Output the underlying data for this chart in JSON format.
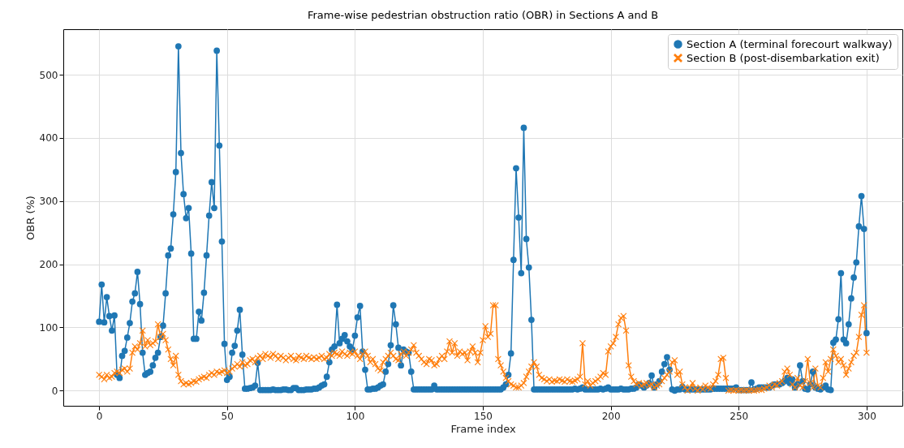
{
  "chart_data": {
    "type": "line",
    "title": "Frame-wise pedestrian obstruction ratio (OBR) in Sections A and B",
    "xlabel": "Frame index",
    "ylabel": "OBR (%)",
    "xlim": [
      -14,
      314
    ],
    "ylim": [
      -24,
      572
    ],
    "xticks": [
      0,
      50,
      100,
      150,
      200,
      250,
      300
    ],
    "yticks": [
      0,
      100,
      200,
      300,
      400,
      500
    ],
    "grid": true,
    "legend": "top right",
    "line_style": "solid",
    "x": [
      0,
      1,
      2,
      3,
      4,
      5,
      6,
      7,
      8,
      9,
      10,
      11,
      12,
      13,
      14,
      15,
      16,
      17,
      18,
      19,
      20,
      21,
      22,
      23,
      24,
      25,
      26,
      27,
      28,
      29,
      30,
      31,
      32,
      33,
      34,
      35,
      36,
      37,
      38,
      39,
      40,
      41,
      42,
      43,
      44,
      45,
      46,
      47,
      48,
      49,
      50,
      51,
      52,
      53,
      54,
      55,
      56,
      57,
      58,
      59,
      60,
      61,
      62,
      63,
      64,
      65,
      66,
      67,
      68,
      69,
      70,
      71,
      72,
      73,
      74,
      75,
      76,
      77,
      78,
      79,
      80,
      81,
      82,
      83,
      84,
      85,
      86,
      87,
      88,
      89,
      90,
      91,
      92,
      93,
      94,
      95,
      96,
      97,
      98,
      99,
      100,
      101,
      102,
      103,
      104,
      105,
      106,
      107,
      108,
      109,
      110,
      111,
      112,
      113,
      114,
      115,
      116,
      117,
      118,
      119,
      120,
      121,
      122,
      123,
      124,
      125,
      126,
      127,
      128,
      129,
      130,
      131,
      132,
      133,
      134,
      135,
      136,
      137,
      138,
      139,
      140,
      141,
      142,
      143,
      144,
      145,
      146,
      147,
      148,
      149,
      150,
      151,
      152,
      153,
      154,
      155,
      156,
      157,
      158,
      159,
      160,
      161,
      162,
      163,
      164,
      165,
      166,
      167,
      168,
      169,
      170,
      171,
      172,
      173,
      174,
      175,
      176,
      177,
      178,
      179,
      180,
      181,
      182,
      183,
      184,
      185,
      186,
      187,
      188,
      189,
      190,
      191,
      192,
      193,
      194,
      195,
      196,
      197,
      198,
      199,
      200,
      201,
      202,
      203,
      204,
      205,
      206,
      207,
      208,
      209,
      210,
      211,
      212,
      213,
      214,
      215,
      216,
      217,
      218,
      219,
      220,
      221,
      222,
      223,
      224,
      225,
      226,
      227,
      228,
      229,
      230,
      231,
      232,
      233,
      234,
      235,
      236,
      237,
      238,
      239,
      240,
      241,
      242,
      243,
      244,
      245,
      246,
      247,
      248,
      249,
      250,
      251,
      252,
      253,
      254,
      255,
      256,
      257,
      258,
      259,
      260,
      261,
      262,
      263,
      264,
      265,
      266,
      267,
      268,
      269,
      270,
      271,
      272,
      273,
      274,
      275,
      276,
      277,
      278,
      279,
      280,
      281,
      282,
      283,
      284,
      285,
      286,
      287,
      288,
      289,
      290,
      291,
      292,
      293,
      294,
      295,
      296,
      297,
      298,
      299,
      300
    ],
    "series": [
      {
        "name": "Section A (terminal forecourt walkway)",
        "color": "#1f77b4",
        "marker": "circle",
        "values": [
          109,
          168,
          108,
          148,
          118,
          95,
          119,
          25,
          20,
          55,
          63,
          84,
          107,
          141,
          154,
          188,
          137,
          60,
          25,
          28,
          30,
          40,
          52,
          60,
          85,
          103,
          154,
          214,
          225,
          279,
          346,
          545,
          376,
          311,
          273,
          289,
          217,
          82,
          82,
          125,
          111,
          155,
          214,
          277,
          330,
          289,
          538,
          388,
          236,
          74,
          17,
          22,
          60,
          71,
          95,
          128,
          57,
          3,
          3,
          4,
          5,
          8,
          44,
          1,
          1,
          1,
          1,
          1,
          2,
          1,
          1,
          1,
          2,
          2,
          1,
          1,
          4,
          4,
          1,
          1,
          1,
          2,
          2,
          2,
          3,
          3,
          5,
          8,
          10,
          22,
          45,
          65,
          70,
          136,
          75,
          82,
          88,
          78,
          70,
          65,
          87,
          116,
          134,
          62,
          33,
          2,
          2,
          3,
          3,
          5,
          8,
          10,
          30,
          42,
          72,
          135,
          105,
          68,
          40,
          65,
          62,
          60,
          30,
          2,
          2,
          2,
          2,
          2,
          2,
          2,
          2,
          8,
          2,
          2,
          2,
          2,
          2,
          2,
          2,
          2,
          2,
          2,
          2,
          2,
          2,
          2,
          2,
          2,
          2,
          2,
          2,
          2,
          2,
          2,
          2,
          2,
          2,
          2,
          5,
          10,
          25,
          59,
          207,
          352,
          274,
          186,
          416,
          240,
          195,
          112,
          2,
          2,
          2,
          2,
          2,
          2,
          2,
          2,
          2,
          2,
          2,
          2,
          2,
          2,
          2,
          2,
          3,
          2,
          3,
          5,
          2,
          2,
          2,
          2,
          2,
          2,
          3,
          2,
          3,
          5,
          2,
          2,
          2,
          2,
          3,
          2,
          2,
          2,
          3,
          3,
          5,
          10,
          8,
          5,
          8,
          12,
          24,
          5,
          10,
          15,
          30,
          42,
          53,
          33,
          2,
          0,
          2,
          2,
          6,
          2,
          2,
          2,
          2,
          2,
          2,
          2,
          2,
          2,
          2,
          2,
          3,
          3,
          3,
          3,
          3,
          3,
          3,
          3,
          3,
          5,
          1,
          1,
          1,
          1,
          1,
          13,
          2,
          3,
          5,
          5,
          5,
          5,
          5,
          8,
          10,
          10,
          10,
          12,
          15,
          20,
          12,
          18,
          5,
          10,
          40,
          15,
          3,
          2,
          10,
          30,
          5,
          3,
          2,
          5,
          8,
          2,
          1,
          76,
          81,
          113,
          186,
          81,
          75,
          105,
          146,
          179,
          203,
          260,
          308,
          256,
          91
        ]
      },
      {
        "name": "Section B (post-disembarkation exit)",
        "color": "#ff7f0e",
        "marker": "cross",
        "values": [
          25,
          22,
          18,
          25,
          20,
          22,
          28,
          30,
          28,
          33,
          35,
          30,
          35,
          60,
          70,
          65,
          75,
          95,
          70,
          80,
          72,
          75,
          78,
          105,
          85,
          90,
          80,
          65,
          50,
          40,
          55,
          25,
          15,
          10,
          12,
          10,
          12,
          15,
          14,
          18,
          20,
          22,
          20,
          25,
          28,
          25,
          30,
          28,
          30,
          32,
          28,
          30,
          35,
          38,
          42,
          38,
          45,
          40,
          42,
          48,
          50,
          45,
          52,
          55,
          50,
          58,
          55,
          52,
          58,
          55,
          50,
          55,
          52,
          48,
          52,
          55,
          50,
          48,
          55,
          52,
          50,
          55,
          52,
          50,
          53,
          50,
          52,
          55,
          50,
          52,
          58,
          55,
          60,
          58,
          55,
          62,
          58,
          55,
          60,
          58,
          62,
          55,
          50,
          58,
          62,
          55,
          45,
          50,
          42,
          35,
          32,
          45,
          50,
          55,
          60,
          55,
          50,
          48,
          58,
          62,
          55,
          60,
          65,
          72,
          60,
          55,
          50,
          45,
          42,
          50,
          48,
          40,
          42,
          50,
          55,
          50,
          62,
          78,
          60,
          75,
          55,
          62,
          58,
          60,
          48,
          62,
          70,
          60,
          45,
          60,
          80,
          102,
          85,
          90,
          135,
          135,
          50,
          40,
          30,
          20,
          15,
          10,
          8,
          5,
          5,
          8,
          12,
          22,
          30,
          38,
          45,
          38,
          25,
          20,
          18,
          15,
          18,
          14,
          16,
          15,
          18,
          16,
          14,
          18,
          15,
          14,
          16,
          18,
          22,
          75,
          10,
          15,
          8,
          12,
          15,
          18,
          22,
          28,
          25,
          62,
          70,
          75,
          85,
          105,
          115,
          118,
          95,
          40,
          22,
          15,
          10,
          12,
          8,
          10,
          12,
          8,
          10,
          5,
          8,
          10,
          15,
          20,
          25,
          30,
          45,
          48,
          25,
          30,
          10,
          5,
          0,
          5,
          12,
          3,
          0,
          5,
          2,
          8,
          5,
          3,
          10,
          15,
          25,
          50,
          52,
          20,
          0,
          1,
          0,
          1,
          0,
          1,
          0,
          1,
          0,
          1,
          0,
          1,
          2,
          1,
          3,
          5,
          8,
          5,
          10,
          8,
          12,
          15,
          30,
          35,
          25,
          10,
          5,
          20,
          8,
          5,
          15,
          50,
          12,
          5,
          35,
          8,
          5,
          20,
          45,
          30,
          50,
          65,
          55,
          45,
          50,
          40,
          25,
          35,
          45,
          55,
          60,
          85,
          120,
          135,
          60
        ]
      }
    ]
  }
}
